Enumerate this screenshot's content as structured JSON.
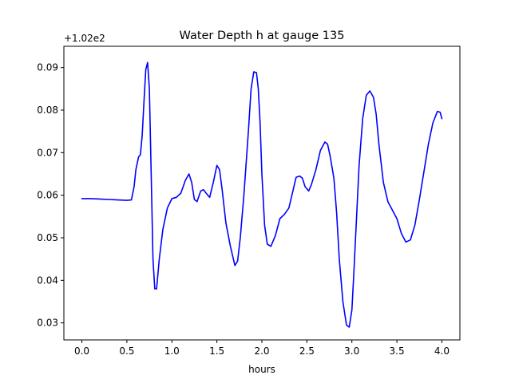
{
  "chart_data": {
    "type": "line",
    "title": "Water Depth h at gauge 135",
    "xlabel": "hours",
    "ylabel": "",
    "y_offset_label": "+1.02e2",
    "xlim": [
      -0.2,
      4.2
    ],
    "ylim": [
      0.026,
      0.095
    ],
    "x_ticks": [
      0.0,
      0.5,
      1.0,
      1.5,
      2.0,
      2.5,
      3.0,
      3.5,
      4.0
    ],
    "x_tick_labels": [
      "0.0",
      "0.5",
      "1.0",
      "1.5",
      "2.0",
      "2.5",
      "3.0",
      "3.5",
      "4.0"
    ],
    "y_ticks": [
      0.03,
      0.04,
      0.05,
      0.06,
      0.07,
      0.08,
      0.09
    ],
    "y_tick_labels": [
      "0.03",
      "0.04",
      "0.05",
      "0.06",
      "0.07",
      "0.08",
      "0.09"
    ],
    "grid": false,
    "series": [
      {
        "color": "#0000ff",
        "x": [
          0.0,
          0.1,
          0.2,
          0.3,
          0.4,
          0.5,
          0.55,
          0.58,
          0.6,
          0.63,
          0.65,
          0.67,
          0.69,
          0.71,
          0.73,
          0.75,
          0.77,
          0.79,
          0.81,
          0.83,
          0.86,
          0.9,
          0.95,
          1.0,
          1.05,
          1.1,
          1.15,
          1.19,
          1.22,
          1.25,
          1.28,
          1.32,
          1.35,
          1.38,
          1.42,
          1.46,
          1.5,
          1.53,
          1.56,
          1.6,
          1.65,
          1.7,
          1.73,
          1.76,
          1.8,
          1.85,
          1.88,
          1.91,
          1.94,
          1.96,
          1.98,
          2.0,
          2.03,
          2.06,
          2.1,
          2.15,
          2.2,
          2.25,
          2.3,
          2.35,
          2.38,
          2.42,
          2.45,
          2.48,
          2.52,
          2.55,
          2.6,
          2.65,
          2.7,
          2.73,
          2.76,
          2.8,
          2.83,
          2.86,
          2.9,
          2.94,
          2.97,
          3.0,
          3.02,
          3.05,
          3.08,
          3.12,
          3.16,
          3.2,
          3.24,
          3.27,
          3.3,
          3.35,
          3.4,
          3.45,
          3.5,
          3.55,
          3.6,
          3.65,
          3.7,
          3.75,
          3.8,
          3.85,
          3.9,
          3.95,
          3.98,
          4.0
        ],
        "y": [
          0.0592,
          0.0592,
          0.0591,
          0.059,
          0.0589,
          0.0588,
          0.0589,
          0.062,
          0.066,
          0.069,
          0.0695,
          0.074,
          0.082,
          0.0895,
          0.0912,
          0.085,
          0.065,
          0.045,
          0.038,
          0.038,
          0.045,
          0.052,
          0.057,
          0.0592,
          0.0595,
          0.0605,
          0.0635,
          0.065,
          0.063,
          0.059,
          0.0585,
          0.061,
          0.0613,
          0.0605,
          0.0595,
          0.063,
          0.067,
          0.066,
          0.061,
          0.0535,
          0.048,
          0.0435,
          0.0445,
          0.05,
          0.06,
          0.075,
          0.085,
          0.089,
          0.0888,
          0.085,
          0.077,
          0.065,
          0.053,
          0.0485,
          0.048,
          0.0505,
          0.0545,
          0.0555,
          0.057,
          0.0615,
          0.0642,
          0.0645,
          0.064,
          0.062,
          0.061,
          0.0625,
          0.066,
          0.0705,
          0.0725,
          0.072,
          0.069,
          0.064,
          0.056,
          0.045,
          0.035,
          0.0295,
          0.029,
          0.033,
          0.041,
          0.054,
          0.067,
          0.078,
          0.0835,
          0.0845,
          0.083,
          0.079,
          0.072,
          0.063,
          0.0585,
          0.0565,
          0.0545,
          0.051,
          0.049,
          0.0495,
          0.053,
          0.059,
          0.0655,
          0.072,
          0.077,
          0.0797,
          0.0795,
          0.078
        ]
      }
    ]
  }
}
